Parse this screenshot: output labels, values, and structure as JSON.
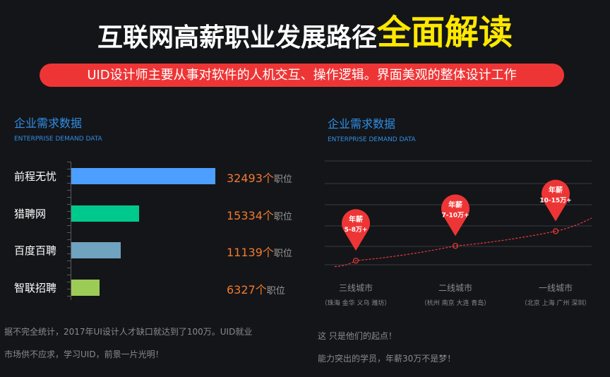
{
  "header": {
    "title_main": "互联网高薪职业发展路径",
    "title_highlight": "全面解读",
    "banner": "UID设计师主要从事对软件的人机交互、操作逻辑。界面美观的整体设计工作"
  },
  "left_panel": {
    "title": "企业需求数据",
    "subtitle": "ENTERPRISE DEMAND DATA",
    "footnote_line1": "据不完全统计，2017年UI设计人才缺口就达到了100万。UID就业",
    "footnote_line2": "市场供不应求，学习UID，前景一片光明！"
  },
  "right_panel": {
    "title": "企业需求数据",
    "subtitle": "ENTERPRISE DEMAND DATA",
    "footnote_line1": "这 只是他们的起点！",
    "footnote_line2": "能力突出的学员，年薪30万不是梦！"
  },
  "chart_data": [
    {
      "type": "bar",
      "orientation": "horizontal",
      "categories": [
        "前程无忧",
        "猎聘网",
        "百度百聘",
        "智联招聘"
      ],
      "values": [
        32493,
        15334,
        11139,
        6327
      ],
      "value_suffix": "个",
      "unit_label": "职位",
      "colors": [
        "#4c9eff",
        "#00c98d",
        "#6fa3bf",
        "#9ccc55"
      ],
      "xlim": [
        0,
        35000
      ]
    },
    {
      "type": "line",
      "x": [
        "三线城市",
        "二线城市",
        "一线城市"
      ],
      "x_sublabels": [
        "（珠海 金华 义乌 潍坊）",
        "（杭州 南京 大连 青岛）",
        "（北京 上海 广州 深圳）"
      ],
      "series": [
        {
          "values": [
            1,
            2,
            3
          ],
          "point_labels": [
            [
              "年薪",
              "5-8万+"
            ],
            [
              "年薪",
              "7-10万+"
            ],
            [
              "年薪",
              "10-15万+"
            ]
          ]
        }
      ],
      "line_color": "#e83a3a",
      "marker_color": "#ee3535",
      "grid": true,
      "ylim": [
        0,
        6
      ]
    }
  ]
}
